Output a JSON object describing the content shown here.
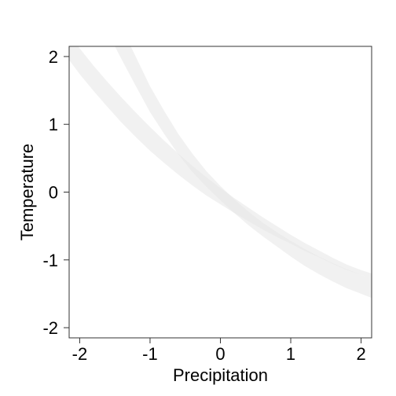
{
  "chart_data": {
    "type": "area",
    "xlabel": "Precipitation",
    "ylabel": "Temperature",
    "xlim": [
      -2.15,
      2.15
    ],
    "ylim": [
      -2.15,
      2.15
    ],
    "xticks": [
      -2,
      -1,
      0,
      1,
      2
    ],
    "yticks": [
      -2,
      -1,
      0,
      1,
      2
    ],
    "xtick_labels": [
      "-2",
      "-1",
      "0",
      "1",
      "2"
    ],
    "ytick_labels": [
      "-2",
      "-1",
      "0",
      "1",
      "2"
    ],
    "grid": false,
    "legend": "none",
    "band_color": "#e6e6e6",
    "band_opacity": 0.55,
    "series": [
      {
        "x": [
          -2.15,
          -2.0,
          -1.8,
          -1.6,
          -1.4,
          -1.2,
          -1.0,
          -0.8,
          -0.6,
          -0.4,
          -0.2,
          0.0,
          0.2,
          0.4,
          0.6,
          0.8,
          1.0,
          1.2,
          1.4,
          1.6,
          1.8,
          2.0,
          2.15
        ],
        "lower": [
          1.95,
          1.74,
          1.49,
          1.25,
          1.02,
          0.81,
          0.61,
          0.43,
          0.26,
          0.1,
          -0.05,
          -0.18,
          -0.31,
          -0.43,
          -0.55,
          -0.66,
          -0.76,
          -0.87,
          -0.96,
          -1.06,
          -1.15,
          -1.22,
          -1.28
        ],
        "upper": [
          2.32,
          2.12,
          1.86,
          1.62,
          1.39,
          1.17,
          0.96,
          0.76,
          0.57,
          0.39,
          0.22,
          0.06,
          -0.09,
          -0.23,
          -0.37,
          -0.5,
          -0.63,
          -0.75,
          -0.86,
          -0.97,
          -1.07,
          -1.15,
          -1.2
        ]
      },
      {
        "x": [
          -2.15,
          -2.0,
          -1.8,
          -1.6,
          -1.4,
          -1.2,
          -1.0,
          -0.8,
          -0.6,
          -0.4,
          -0.2,
          0.0,
          0.2,
          0.4,
          0.6,
          0.8,
          1.0,
          1.2,
          1.4,
          1.6,
          1.8,
          2.0,
          2.15
        ],
        "lower": [
          3.45,
          3.15,
          2.75,
          2.35,
          1.95,
          1.56,
          1.18,
          0.86,
          0.56,
          0.3,
          0.08,
          -0.12,
          -0.31,
          -0.49,
          -0.65,
          -0.8,
          -0.95,
          -1.09,
          -1.21,
          -1.32,
          -1.42,
          -1.5,
          -1.56
        ],
        "upper": [
          4.1,
          3.75,
          3.3,
          2.86,
          2.42,
          1.99,
          1.56,
          1.2,
          0.86,
          0.57,
          0.31,
          0.09,
          -0.11,
          -0.29,
          -0.45,
          -0.59,
          -0.72,
          -0.84,
          -0.95,
          -1.05,
          -1.14,
          -1.22,
          -1.28
        ]
      }
    ]
  }
}
